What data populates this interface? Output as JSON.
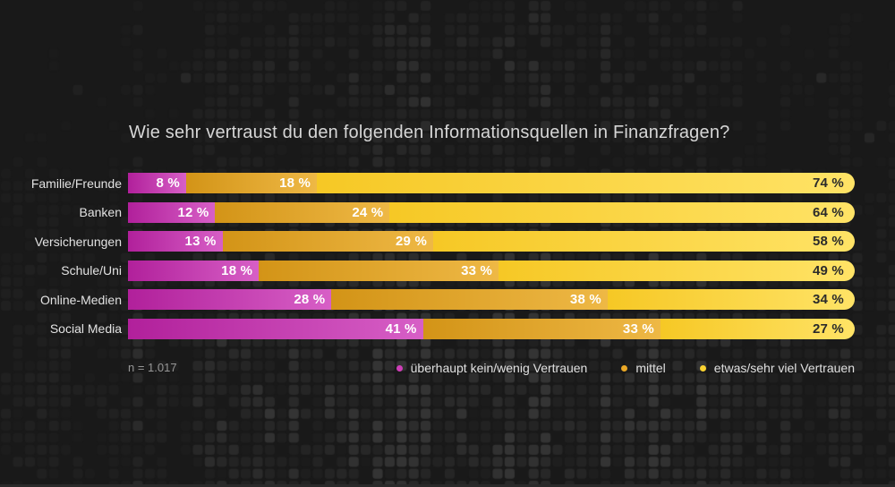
{
  "title": "Wie sehr vertraust du den folgenden Informationsquellen in Finanzfragen?",
  "sample_note": "n = 1.017",
  "chart_data": {
    "type": "bar",
    "orientation": "horizontal",
    "stacked": true,
    "unit": "%",
    "value_suffix": " %",
    "title": "Wie sehr vertraust du den folgenden Informationsquellen in Finanzfragen?",
    "categories": [
      "Familie/Freunde",
      "Banken",
      "Versicherungen",
      "Schule/Uni",
      "Online-Medien",
      "Social Media"
    ],
    "series": [
      {
        "name": "überhaupt kein/wenig Vertrauen",
        "values": [
          8,
          12,
          13,
          18,
          28,
          41
        ]
      },
      {
        "name": "mittel",
        "values": [
          18,
          24,
          29,
          33,
          38,
          33
        ]
      },
      {
        "name": "etwas/sehr viel Vertrauen",
        "values": [
          74,
          64,
          58,
          49,
          34,
          27
        ]
      }
    ],
    "legend_position": "bottom-right",
    "grid": false,
    "sample_size": "n = 1.017"
  },
  "legend": {
    "items": [
      {
        "label": "überhaupt kein/wenig Vertrauen",
        "color": "#cf3fb8"
      },
      {
        "label": "mittel",
        "color": "#eaa826"
      },
      {
        "label": "etwas/sehr viel Vertrauen",
        "color": "#f9d231"
      }
    ]
  },
  "style": {
    "background": "#191919",
    "series_gradients": [
      [
        "#b1209b",
        "#d75fc6"
      ],
      [
        "#d39417",
        "#eeb845"
      ],
      [
        "#f6c825",
        "#ffe366"
      ]
    ],
    "value_label_colors": [
      "#ffffff",
      "#ffffff",
      "#2b2b2b"
    ],
    "title_color": "#d6d6d6",
    "text_color": "#e2e2e2",
    "muted_text_color": "#979797"
  }
}
